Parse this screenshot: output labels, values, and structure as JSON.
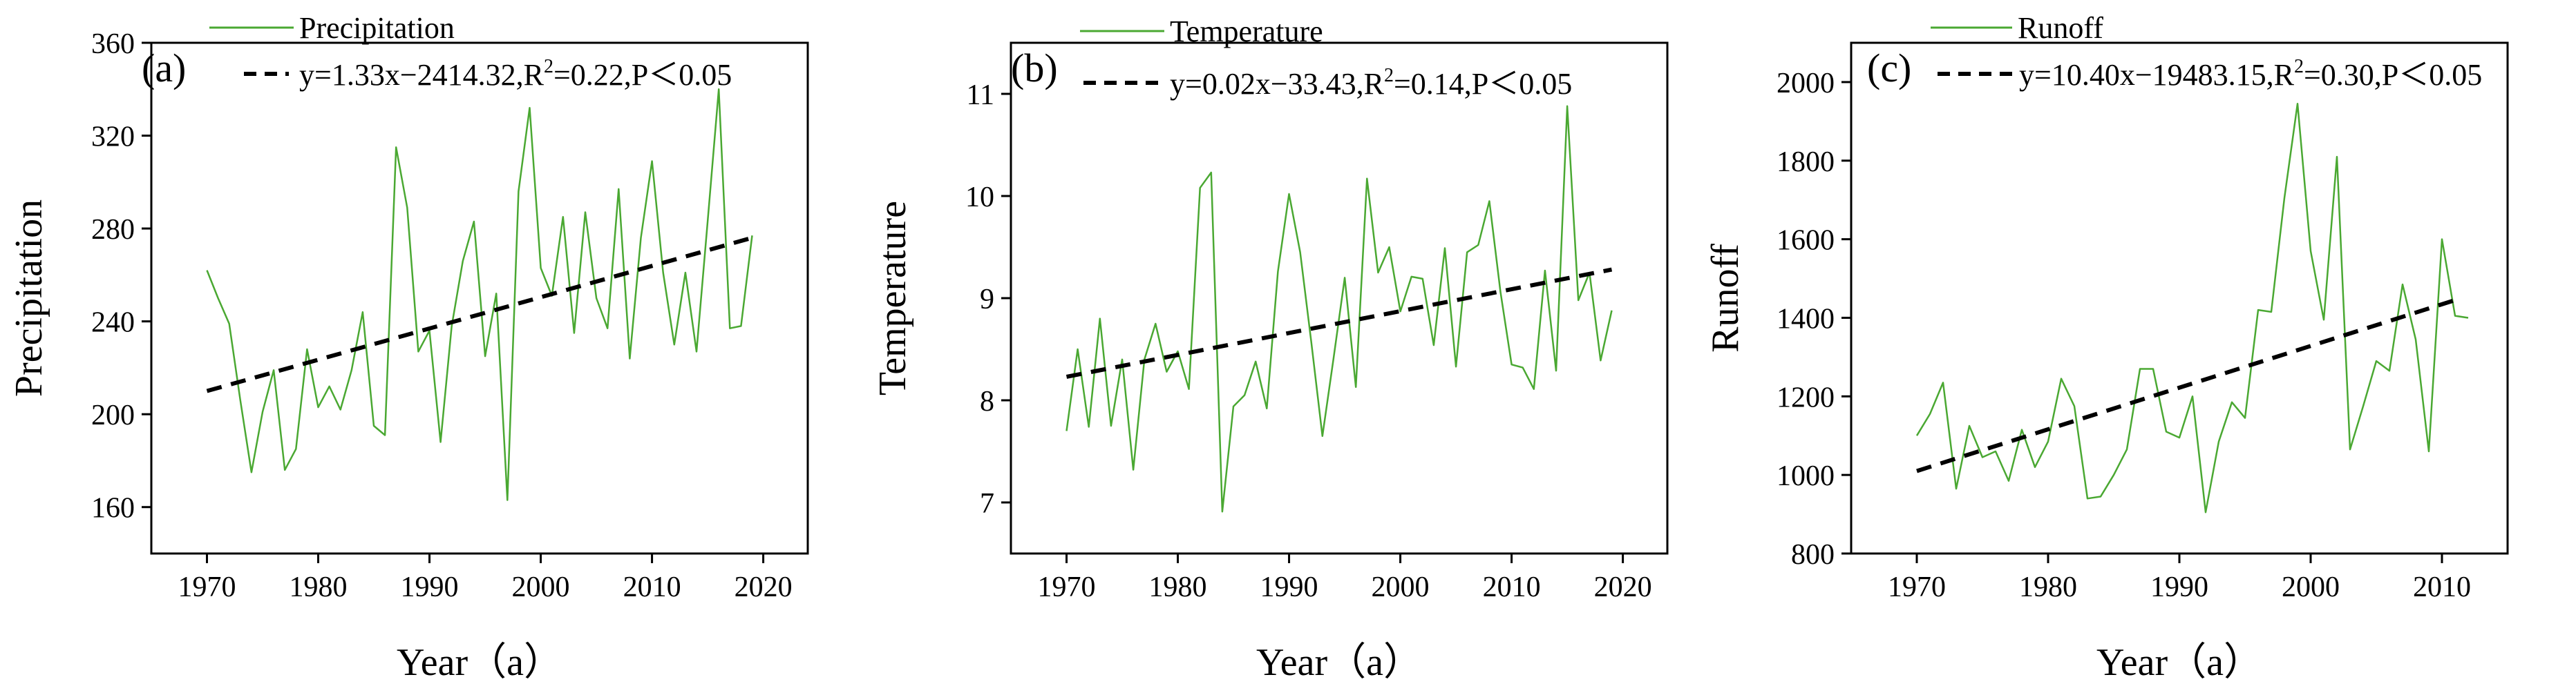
{
  "chart_data": [
    {
      "type": "line",
      "panel_label": "(a)",
      "xlabel": "Year（a）",
      "ylabel": "Precipitation",
      "xlim": [
        1965,
        2024
      ],
      "ylim": [
        140,
        360
      ],
      "xticks": [
        1970,
        1980,
        1990,
        2000,
        2010,
        2020
      ],
      "yticks": [
        160,
        200,
        240,
        280,
        320,
        360
      ],
      "legend_position": "top",
      "series": [
        {
          "name": "Precipitation",
          "color": "#4aa832",
          "x": [
            1970,
            1971,
            1972,
            1973,
            1974,
            1975,
            1976,
            1977,
            1978,
            1979,
            1980,
            1981,
            1982,
            1983,
            1984,
            1985,
            1986,
            1987,
            1988,
            1989,
            1990,
            1991,
            1992,
            1993,
            1994,
            1995,
            1996,
            1997,
            1998,
            1999,
            2000,
            2001,
            2002,
            2003,
            2004,
            2005,
            2006,
            2007,
            2008,
            2009,
            2010,
            2011,
            2012,
            2013,
            2014,
            2015,
            2016,
            2017,
            2018,
            2019
          ],
          "values": [
            262,
            250,
            239,
            206,
            175,
            201,
            219,
            176,
            185,
            228,
            203,
            212,
            202,
            219,
            244,
            195,
            191,
            315,
            289,
            227,
            236,
            188,
            238,
            266,
            283,
            225,
            252,
            163,
            296,
            332,
            263,
            251,
            285,
            235,
            287,
            250,
            237,
            297,
            224,
            276,
            309,
            261,
            230,
            261,
            227,
            283,
            340,
            237,
            238,
            277
          ]
        }
      ],
      "trend": {
        "label": "y=1.33x−2414.32,R²=0.22,P＜0.05",
        "label_parts": {
          "eq": "y=1.33x−2414.32,R",
          "sup": "2",
          "rest": "=0.22,P＜0.05"
        },
        "color": "#000000",
        "x_range": [
          1970,
          2019
        ],
        "y_range": [
          210,
          276
        ]
      }
    },
    {
      "type": "line",
      "panel_label": "(b)",
      "xlabel": "Year（a）",
      "ylabel": "Temperature",
      "xlim": [
        1965,
        2024
      ],
      "ylim": [
        6.5,
        11.5
      ],
      "xticks": [
        1970,
        1980,
        1990,
        2000,
        2010,
        2020
      ],
      "yticks": [
        7,
        8,
        9,
        10,
        11
      ],
      "legend_position": "top",
      "series": [
        {
          "name": "Temperature",
          "color": "#4aa832",
          "x": [
            1970,
            1971,
            1972,
            1973,
            1974,
            1975,
            1976,
            1977,
            1978,
            1979,
            1980,
            1981,
            1982,
            1983,
            1984,
            1985,
            1986,
            1987,
            1988,
            1989,
            1990,
            1991,
            1992,
            1993,
            1994,
            1995,
            1996,
            1997,
            1998,
            1999,
            2000,
            2001,
            2002,
            2003,
            2004,
            2005,
            2006,
            2007,
            2008,
            2009,
            2010,
            2011,
            2012,
            2013,
            2014,
            2015,
            2016,
            2017,
            2018,
            2019
          ],
          "values": [
            7.7,
            8.5,
            7.74,
            8.8,
            7.75,
            8.4,
            7.32,
            8.4,
            8.75,
            8.28,
            8.48,
            8.11,
            10.08,
            10.23,
            6.91,
            7.94,
            8.05,
            8.38,
            7.92,
            9.26,
            10.02,
            9.45,
            8.57,
            7.65,
            8.41,
            9.2,
            8.13,
            10.17,
            9.25,
            9.5,
            8.87,
            9.21,
            9.19,
            8.54,
            9.49,
            8.33,
            9.45,
            9.52,
            9.95,
            9.06,
            8.35,
            8.32,
            8.11,
            9.27,
            8.29,
            10.88,
            8.98,
            9.25,
            8.39,
            8.88
          ]
        }
      ],
      "trend": {
        "label": "y=0.02x−33.43,R²=0.14,P＜0.05",
        "label_parts": {
          "eq": "y=0.02x−33.43,R",
          "sup": "2",
          "rest": "=0.14,P＜0.05"
        },
        "color": "#000000",
        "x_range": [
          1970,
          2019
        ],
        "y_range": [
          8.23,
          9.28
        ]
      }
    },
    {
      "type": "line",
      "panel_label": "(c)",
      "xlabel": "Year（a）",
      "ylabel": "Runoff",
      "xlim": [
        1965,
        2015
      ],
      "ylim": [
        800,
        2100
      ],
      "xticks": [
        1970,
        1980,
        1990,
        2000,
        2010
      ],
      "yticks": [
        800,
        1000,
        1200,
        1400,
        1600,
        1800,
        2000
      ],
      "legend_position": "top",
      "series": [
        {
          "name": "Runoff",
          "color": "#4aa832",
          "x": [
            1970,
            1971,
            1972,
            1973,
            1974,
            1975,
            1976,
            1977,
            1978,
            1979,
            1980,
            1981,
            1982,
            1983,
            1984,
            1985,
            1986,
            1987,
            1988,
            1989,
            1990,
            1991,
            1992,
            1993,
            1994,
            1995,
            1996,
            1997,
            1998,
            1999,
            2000,
            2001,
            2002,
            2003,
            2004,
            2005,
            2006,
            2007,
            2008,
            2009,
            2010,
            2011,
            2012
          ],
          "values": [
            1100,
            1155,
            1235,
            965,
            1125,
            1045,
            1060,
            985,
            1115,
            1020,
            1085,
            1245,
            1175,
            940,
            945,
            1000,
            1065,
            1270,
            1270,
            1110,
            1095,
            1200,
            905,
            1085,
            1185,
            1145,
            1420,
            1415,
            1705,
            1945,
            1570,
            1395,
            1810,
            1065,
            1175,
            1290,
            1265,
            1485,
            1345,
            1060,
            1600,
            1405,
            1400
          ]
        }
      ],
      "trend": {
        "label": "y=10.40x−19483.15,R²=0.30,P＜0.05",
        "label_parts": {
          "eq": "y=10.40x−19483.15,R",
          "sup": "2",
          "rest": "=0.30,P＜0.05"
        },
        "color": "#000000",
        "x_range": [
          1970,
          2011
        ],
        "y_range": [
          1010,
          1445
        ]
      }
    }
  ]
}
